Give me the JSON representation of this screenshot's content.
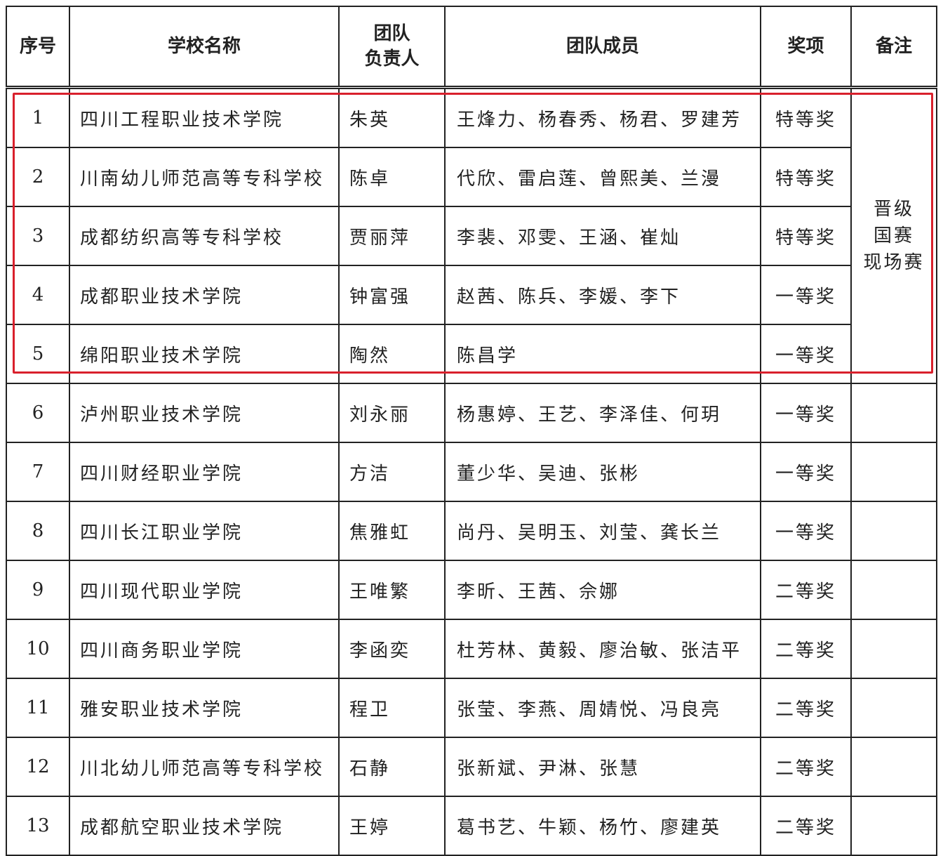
{
  "headers": {
    "index": "序号",
    "school": "学校名称",
    "leader_line1": "团队",
    "leader_line2": "负责人",
    "members": "团队成员",
    "award": "奖项",
    "note": "备注"
  },
  "rows": [
    {
      "index": "1",
      "school": "四川工程职业技术学院",
      "leader": "朱英",
      "members": "王烽力、杨春秀、杨君、罗建芳",
      "award": "特等奖"
    },
    {
      "index": "2",
      "school": "川南幼儿师范高等专科学校",
      "leader": "陈卓",
      "members": "代欣、雷启莲、曾熙美、兰漫",
      "award": "特等奖"
    },
    {
      "index": "3",
      "school": "成都纺织高等专科学校",
      "leader": "贾丽萍",
      "members": "李裴、邓雯、王涵、崔灿",
      "award": "特等奖"
    },
    {
      "index": "4",
      "school": "成都职业技术学院",
      "leader": "钟富强",
      "members": "赵茜、陈兵、李媛、李下",
      "award": "一等奖"
    },
    {
      "index": "5",
      "school": "绵阳职业技术学院",
      "leader": "陶然",
      "members": "陈昌学",
      "award": "一等奖"
    },
    {
      "index": "6",
      "school": "泸州职业技术学院",
      "leader": "刘永丽",
      "members": "杨惠婷、王艺、李泽佳、何玥",
      "award": "一等奖"
    },
    {
      "index": "7",
      "school": "四川财经职业学院",
      "leader": "方洁",
      "members": "董少华、吴迪、张彬",
      "award": "一等奖"
    },
    {
      "index": "8",
      "school": "四川长江职业学院",
      "leader": "焦雅虹",
      "members": "尚丹、吴明玉、刘莹、龚长兰",
      "award": "一等奖"
    },
    {
      "index": "9",
      "school": "四川现代职业学院",
      "leader": "王唯繁",
      "members": "李昕、王茜、佘娜",
      "award": "二等奖"
    },
    {
      "index": "10",
      "school": "四川商务职业学院",
      "leader": "李函奕",
      "members": "杜芳林、黄毅、廖治敏、张洁平",
      "award": "二等奖"
    },
    {
      "index": "11",
      "school": "雅安职业技术学院",
      "leader": "程卫",
      "members": "张莹、李燕、周婧悦、冯良亮",
      "award": "二等奖"
    },
    {
      "index": "12",
      "school": "川北幼儿师范高等专科学校",
      "leader": "石静",
      "members": "张新斌、尹淋、张慧",
      "award": "二等奖"
    },
    {
      "index": "13",
      "school": "成都航空职业技术学院",
      "leader": "王婷",
      "members": "葛书艺、牛颖、杨竹、廖建英",
      "award": "二等奖"
    }
  ],
  "note_group": {
    "line1": "晋级",
    "line2": "国赛",
    "line3": "现场赛"
  },
  "highlight_color": "#d9202c"
}
